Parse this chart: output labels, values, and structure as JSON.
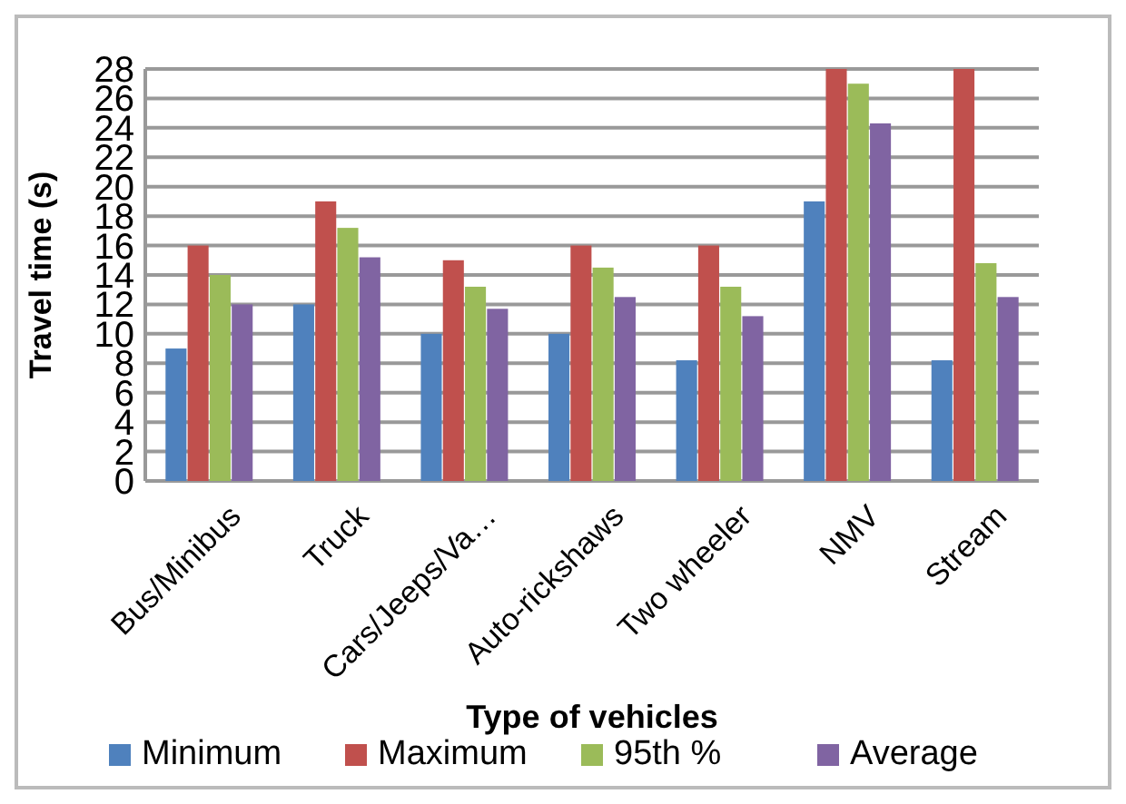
{
  "chart_data": {
    "type": "bar",
    "xlabel": "Type of vehicles",
    "ylabel": "Travel time (s)",
    "categories": [
      "Bus/Minibus",
      "Truck",
      "Cars/Jeeps/Va…",
      "Auto-rickshaws",
      "Two wheeler",
      "NMV",
      "Stream"
    ],
    "series": [
      {
        "name": "Minimum",
        "color": "#4f81bd",
        "values": [
          9,
          12,
          10,
          10,
          8.2,
          19,
          8.2
        ]
      },
      {
        "name": "Maximum",
        "color": "#c0504d",
        "values": [
          16,
          19,
          15,
          16,
          16,
          28,
          28
        ]
      },
      {
        "name": "95th %",
        "color": "#9bbb59",
        "values": [
          14,
          17.2,
          13.2,
          14.5,
          13.2,
          27,
          14.8
        ]
      },
      {
        "name": "Average",
        "color": "#8064a2",
        "values": [
          12,
          15.2,
          11.7,
          12.5,
          11.2,
          24.3,
          12.5
        ]
      }
    ],
    "ylim": [
      0,
      28
    ],
    "yticks": [
      0,
      2,
      4,
      6,
      8,
      10,
      12,
      14,
      16,
      18,
      20,
      22,
      24,
      26,
      28
    ],
    "grid": "y",
    "legend": "bottom"
  }
}
